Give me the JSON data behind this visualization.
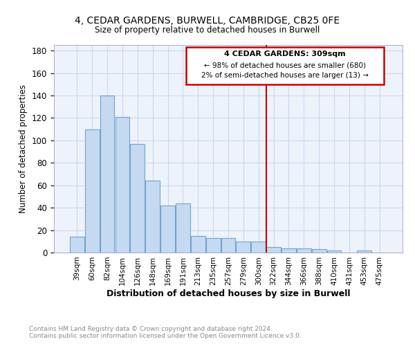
{
  "title1": "4, CEDAR GARDENS, BURWELL, CAMBRIDGE, CB25 0FE",
  "title2": "Size of property relative to detached houses in Burwell",
  "xlabel": "Distribution of detached houses by size in Burwell",
  "ylabel": "Number of detached properties",
  "categories": [
    "39sqm",
    "60sqm",
    "82sqm",
    "104sqm",
    "126sqm",
    "148sqm",
    "169sqm",
    "191sqm",
    "213sqm",
    "235sqm",
    "257sqm",
    "279sqm",
    "300sqm",
    "322sqm",
    "344sqm",
    "366sqm",
    "388sqm",
    "410sqm",
    "431sqm",
    "453sqm",
    "475sqm"
  ],
  "values": [
    14,
    110,
    140,
    121,
    97,
    64,
    42,
    44,
    15,
    13,
    13,
    10,
    10,
    5,
    4,
    4,
    3,
    2,
    0,
    2,
    0
  ],
  "bar_color": "#c5d9f0",
  "bar_edge_color": "#6ea3d0",
  "marker_line_color": "#cc0000",
  "annotation_line1": "4 CEDAR GARDENS: 309sqm",
  "annotation_line2": "← 98% of detached houses are smaller (680)",
  "annotation_line3": "2% of semi-detached houses are larger (13) →",
  "footer1": "Contains HM Land Registry data © Crown copyright and database right 2024.",
  "footer2": "Contains public sector information licensed under the Open Government Licence v3.0.",
  "ylim": [
    0,
    185
  ],
  "yticks": [
    0,
    20,
    40,
    60,
    80,
    100,
    120,
    140,
    160,
    180
  ],
  "background_color": "#eef2fb",
  "grid_color": "#c8d8ee"
}
